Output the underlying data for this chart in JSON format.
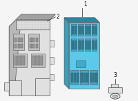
{
  "bg_color": "#f5f5f5",
  "part1_front": "#5ec8ea",
  "part1_side": "#3a9fbd",
  "part1_top": "#2e85a0",
  "part1_detail": "#3aadcc",
  "part1_slot_dark": "#2a7a95",
  "part2_front": "#e0e0e0",
  "part2_side": "#b8b8b8",
  "part2_top": "#c8c8c8",
  "part2_detail": "#c0c0c0",
  "part2_darker": "#989898",
  "outline_color": "#555555",
  "label_color": "#000000",
  "leader_color": "#444444",
  "label_fontsize": 5.5,
  "label1": "1",
  "label2": "2",
  "label3": "3"
}
